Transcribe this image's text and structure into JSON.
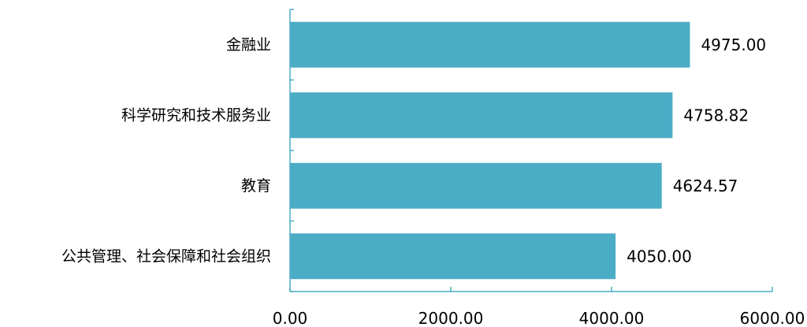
{
  "chart_data": {
    "type": "bar",
    "orientation": "horizontal",
    "categories": [
      "金融业",
      "科学研究和技术服务业",
      "教育",
      "公共管理、社会保障和社会组织"
    ],
    "values": [
      4975.0,
      4758.82,
      4624.57,
      4050.0
    ],
    "value_labels": [
      "4975.00",
      "4758.82",
      "4624.57",
      "4050.00"
    ],
    "xlim": [
      0,
      6000
    ],
    "x_ticks": [
      0,
      2000,
      4000,
      6000
    ],
    "x_tick_labels": [
      "0.00",
      "2000.00",
      "4000.00",
      "6000.00"
    ],
    "bar_color": "#4bacc6",
    "axis_color": "#4bacc6",
    "grid": false,
    "legend": "none"
  }
}
